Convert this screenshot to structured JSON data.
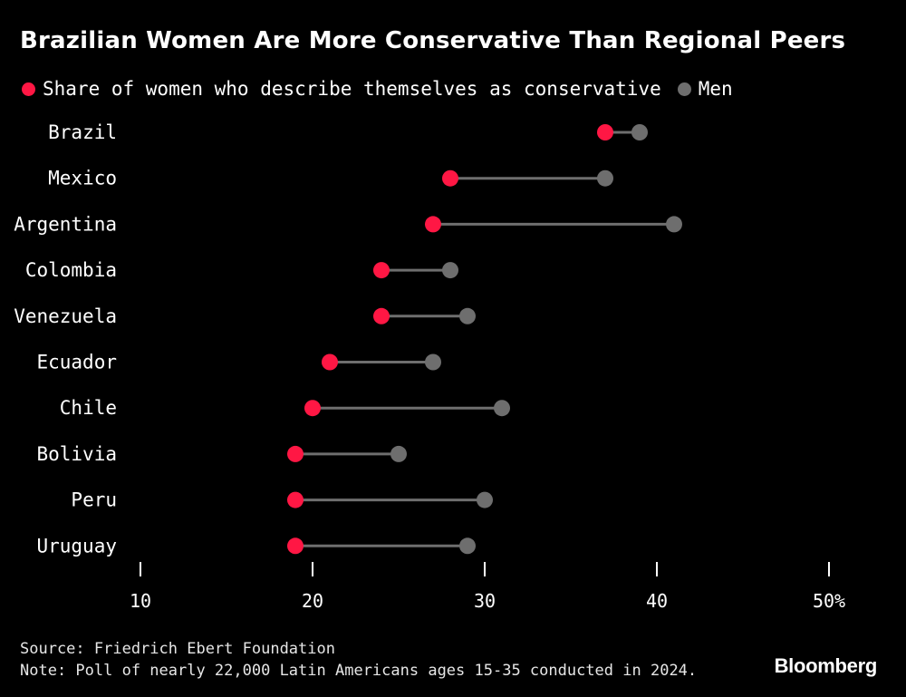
{
  "title": "Brazilian Women Are More Conservative Than Regional Peers",
  "legend": {
    "women_label": "Share of women who describe themselves as conservative",
    "men_label": "Men"
  },
  "colors": {
    "women": "#ff1744",
    "men": "#6e6e6e",
    "connector": "#6e6e6e",
    "text": "#ffffff"
  },
  "chart_data": {
    "type": "dumbbell",
    "title": "Brazilian Women Are More Conservative Than Regional Peers",
    "categories": [
      "Brazil",
      "Mexico",
      "Argentina",
      "Colombia",
      "Venezuela",
      "Ecuador",
      "Chile",
      "Bolivia",
      "Peru",
      "Uruguay"
    ],
    "series": [
      {
        "name": "Share of women who describe themselves as conservative",
        "values": [
          37,
          28,
          27,
          24,
          24,
          21,
          20,
          19,
          19,
          19
        ]
      },
      {
        "name": "Men",
        "values": [
          39,
          37,
          41,
          28,
          29,
          27,
          31,
          25,
          30,
          29
        ]
      }
    ],
    "xlim": [
      10,
      50
    ],
    "xticks": [
      10,
      20,
      30,
      40,
      50
    ],
    "xtick_labels": [
      "10",
      "20",
      "30",
      "40",
      "50%"
    ],
    "xlabel": "",
    "ylabel": ""
  },
  "footer": {
    "source": "Source: Friedrich Ebert Foundation",
    "note": "Note: Poll of nearly 22,000 Latin Americans ages 15-35 conducted in 2024."
  },
  "brand": "Bloomberg"
}
